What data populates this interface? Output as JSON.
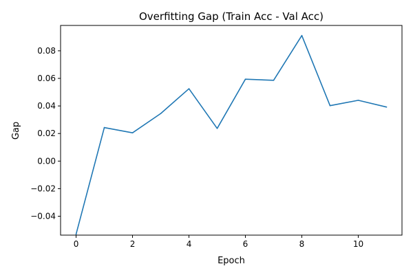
{
  "chart_data": {
    "type": "line",
    "title": "Overfitting Gap (Train Acc - Val Acc)",
    "xlabel": "Epoch",
    "ylabel": "Gap",
    "x": [
      0,
      1,
      2,
      3,
      4,
      5,
      6,
      7,
      8,
      9,
      10,
      11
    ],
    "series": [
      {
        "values": [
          -0.053,
          0.0243,
          0.0205,
          0.0345,
          0.0525,
          0.0237,
          0.0594,
          0.0586,
          0.0911,
          0.0402,
          0.0441,
          0.0392
        ],
        "color": "#1f77b4"
      }
    ],
    "xlim": [
      -0.55,
      11.55
    ],
    "ylim": [
      -0.0537,
      0.0984
    ],
    "xticks": [
      0,
      2,
      4,
      6,
      8,
      10
    ],
    "xtick_labels": [
      "0",
      "2",
      "4",
      "6",
      "8",
      "10"
    ],
    "yticks": [
      -0.04,
      -0.02,
      0.0,
      0.02,
      0.04,
      0.06,
      0.08
    ],
    "ytick_labels": [
      "−0.04",
      "−0.02",
      "0.00",
      "0.02",
      "0.04",
      "0.06",
      "0.08"
    ],
    "grid": false,
    "legend": "none"
  }
}
